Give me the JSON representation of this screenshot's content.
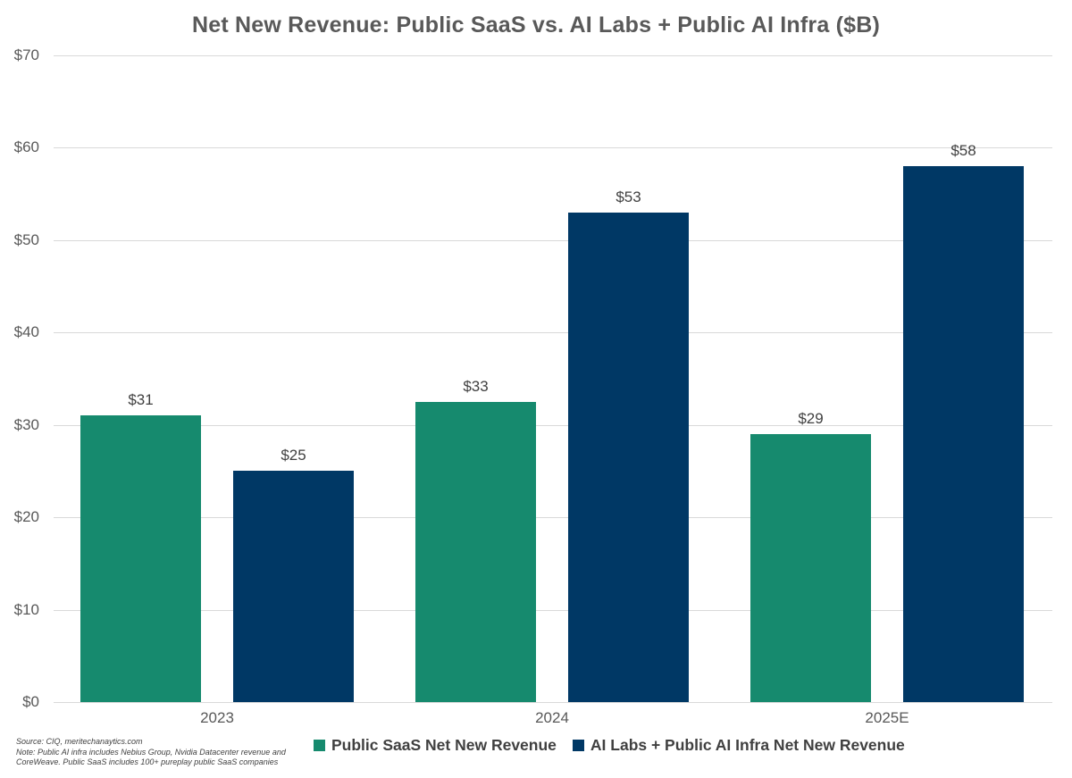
{
  "title": "Net New Revenue: Public SaaS vs. AI Labs + Public AI Infra ($B)",
  "source_note": "Source: CIQ, meritechanaytics.com\nNote: Public AI infra includes Nebius Group, Nvidia Datacenter revenue and\nCoreWeave. Public SaaS includes 100+ pureplay public SaaS companies",
  "colors": {
    "saas_green": "#168a6e",
    "ai_navy": "#003865",
    "gridline": "#d9d9d9",
    "title_text": "#595959",
    "axis_text": "#595959",
    "data_label_text": "#404040",
    "background": "#ffffff"
  },
  "legend": {
    "items": [
      {
        "label": "Public SaaS Net New Revenue",
        "color_key": "saas_green"
      },
      {
        "label": "AI Labs + Public AI Infra Net New Revenue",
        "color_key": "ai_navy"
      }
    ]
  },
  "chart_data": {
    "type": "bar",
    "title": "Net New Revenue: Public SaaS vs. AI Labs + Public AI Infra ($B)",
    "categories": [
      "2023",
      "2024",
      "2025E"
    ],
    "series": [
      {
        "name": "Public SaaS Net New Revenue",
        "color": "#168a6e",
        "values": [
          31,
          32.5,
          29
        ],
        "data_labels": [
          "$31",
          "$33",
          "$29"
        ]
      },
      {
        "name": "AI Labs + Public AI Infra Net New Revenue",
        "color": "#003865",
        "values": [
          25,
          53,
          58
        ],
        "data_labels": [
          "$25",
          "$53",
          "$58"
        ]
      }
    ],
    "xlabel": "",
    "ylabel": "",
    "ylim": [
      0,
      70
    ],
    "ytick_step": 10,
    "yticks": [
      "$0",
      "$10",
      "$20",
      "$30",
      "$40",
      "$50",
      "$60",
      "$70"
    ],
    "grid": true,
    "legend_position": "bottom"
  }
}
